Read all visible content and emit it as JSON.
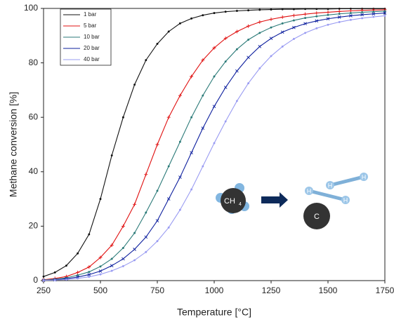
{
  "chart_data": {
    "type": "line",
    "x_label": "Temperature [°C]",
    "y_label": "Methane conversion [%]",
    "x": [
      250,
      300,
      350,
      400,
      450,
      500,
      550,
      600,
      650,
      700,
      750,
      800,
      850,
      900,
      950,
      1000,
      1050,
      1100,
      1150,
      1200,
      1250,
      1300,
      1350,
      1400,
      1450,
      1500,
      1550,
      1600,
      1650,
      1700,
      1750
    ],
    "series": [
      {
        "name": "1 bar",
        "color": "#111111",
        "values": [
          1.5,
          3,
          5.5,
          10,
          17,
          30,
          46,
          60,
          72,
          81,
          87,
          91.5,
          94.5,
          96.3,
          97.5,
          98.3,
          98.8,
          99.1,
          99.3,
          99.5,
          99.6,
          99.7,
          99.7,
          99.8,
          99.8,
          99.8,
          99.9,
          99.9,
          99.9,
          99.9,
          99.9
        ]
      },
      {
        "name": "5 bar",
        "color": "#e01010",
        "values": [
          0.3,
          0.8,
          1.5,
          3,
          5,
          8.5,
          13,
          20,
          28,
          39,
          50,
          60,
          68,
          75,
          81,
          85.5,
          89,
          91.5,
          93.5,
          95,
          96,
          96.8,
          97.4,
          97.9,
          98.3,
          98.6,
          98.9,
          99.1,
          99.3,
          99.4,
          99.5
        ]
      },
      {
        "name": "10 bar",
        "color": "#2b7a78",
        "values": [
          0.2,
          0.5,
          1,
          2,
          3.2,
          5.2,
          8,
          12,
          17.5,
          25,
          33,
          42,
          51,
          60,
          68,
          75,
          80.5,
          85,
          88.5,
          91,
          93,
          94.5,
          95.6,
          96.5,
          97.1,
          97.6,
          98,
          98.3,
          98.6,
          98.8,
          99
        ]
      },
      {
        "name": "20 bar",
        "color": "#0d1f9e",
        "values": [
          0.1,
          0.3,
          0.7,
          1.3,
          2.2,
          3.5,
          5.5,
          8,
          11.5,
          16,
          22,
          30,
          38,
          47,
          56,
          64,
          71,
          77,
          82,
          86,
          89,
          91.3,
          93,
          94.4,
          95.4,
          96.2,
          96.8,
          97.3,
          97.7,
          98,
          98.3
        ]
      },
      {
        "name": "40 bar",
        "color": "#9a9cf2",
        "values": [
          0.1,
          0.2,
          0.4,
          0.8,
          1.4,
          2.3,
          3.6,
          5.3,
          7.5,
          10.5,
          14.5,
          19.5,
          26,
          33.5,
          42,
          50.5,
          58.5,
          66,
          72.5,
          78,
          82.5,
          86,
          88.8,
          91,
          92.7,
          94,
          95,
          95.8,
          96.4,
          96.9,
          97.3
        ]
      }
    ],
    "xlim": [
      250,
      1750
    ],
    "xticks": [
      250,
      500,
      750,
      1000,
      1250,
      1500,
      1750
    ],
    "ylim": [
      0,
      100
    ],
    "yticks": [
      0,
      20,
      40,
      60,
      80,
      100
    ],
    "legend": "upper-left",
    "annotations": {
      "reactant": "CH",
      "reactant_subscript": "4",
      "product": "C",
      "hydrogen": "H"
    }
  }
}
